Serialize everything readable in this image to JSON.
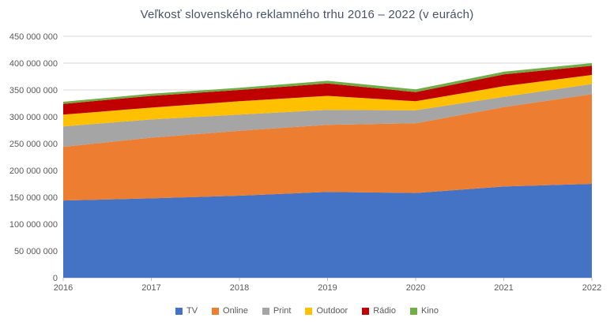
{
  "chart_data": {
    "type": "area",
    "stacked": true,
    "title": "Veľkosť slovenského reklamného trhu 2016 – 2022 (v eurách)",
    "xlabel": "",
    "ylabel": "",
    "x": [
      2016,
      2017,
      2018,
      2019,
      2020,
      2021,
      2022
    ],
    "series": [
      {
        "name": "TV",
        "color": "#4472C4",
        "values": [
          144000000,
          148000000,
          153000000,
          160000000,
          158000000,
          170000000,
          175000000
        ]
      },
      {
        "name": "Online",
        "color": "#ED7D31",
        "values": [
          100000000,
          113000000,
          121000000,
          125000000,
          130000000,
          148000000,
          167000000
        ]
      },
      {
        "name": "Print",
        "color": "#A5A5A5",
        "values": [
          38000000,
          34000000,
          30000000,
          28000000,
          24000000,
          19000000,
          19000000
        ]
      },
      {
        "name": "Outdoor",
        "color": "#FFC000",
        "values": [
          22000000,
          22000000,
          25000000,
          26000000,
          17000000,
          20000000,
          17000000
        ]
      },
      {
        "name": "Rádio",
        "color": "#C00000",
        "values": [
          20000000,
          22000000,
          21000000,
          23000000,
          17000000,
          22000000,
          17000000
        ]
      },
      {
        "name": "Kino",
        "color": "#70AD47",
        "values": [
          4000000,
          4000000,
          4000000,
          5000000,
          5000000,
          5000000,
          5000000
        ]
      }
    ],
    "ylim": [
      0,
      450000000
    ],
    "ytick_step": 50000000,
    "grid": true,
    "legend_position": "bottom",
    "colors": {
      "title_text": "#44546A",
      "axis_text": "#595959",
      "gridline": "#D9D9D9",
      "axis_line": "#BFBFBF",
      "background": "#FFFFFF"
    }
  }
}
